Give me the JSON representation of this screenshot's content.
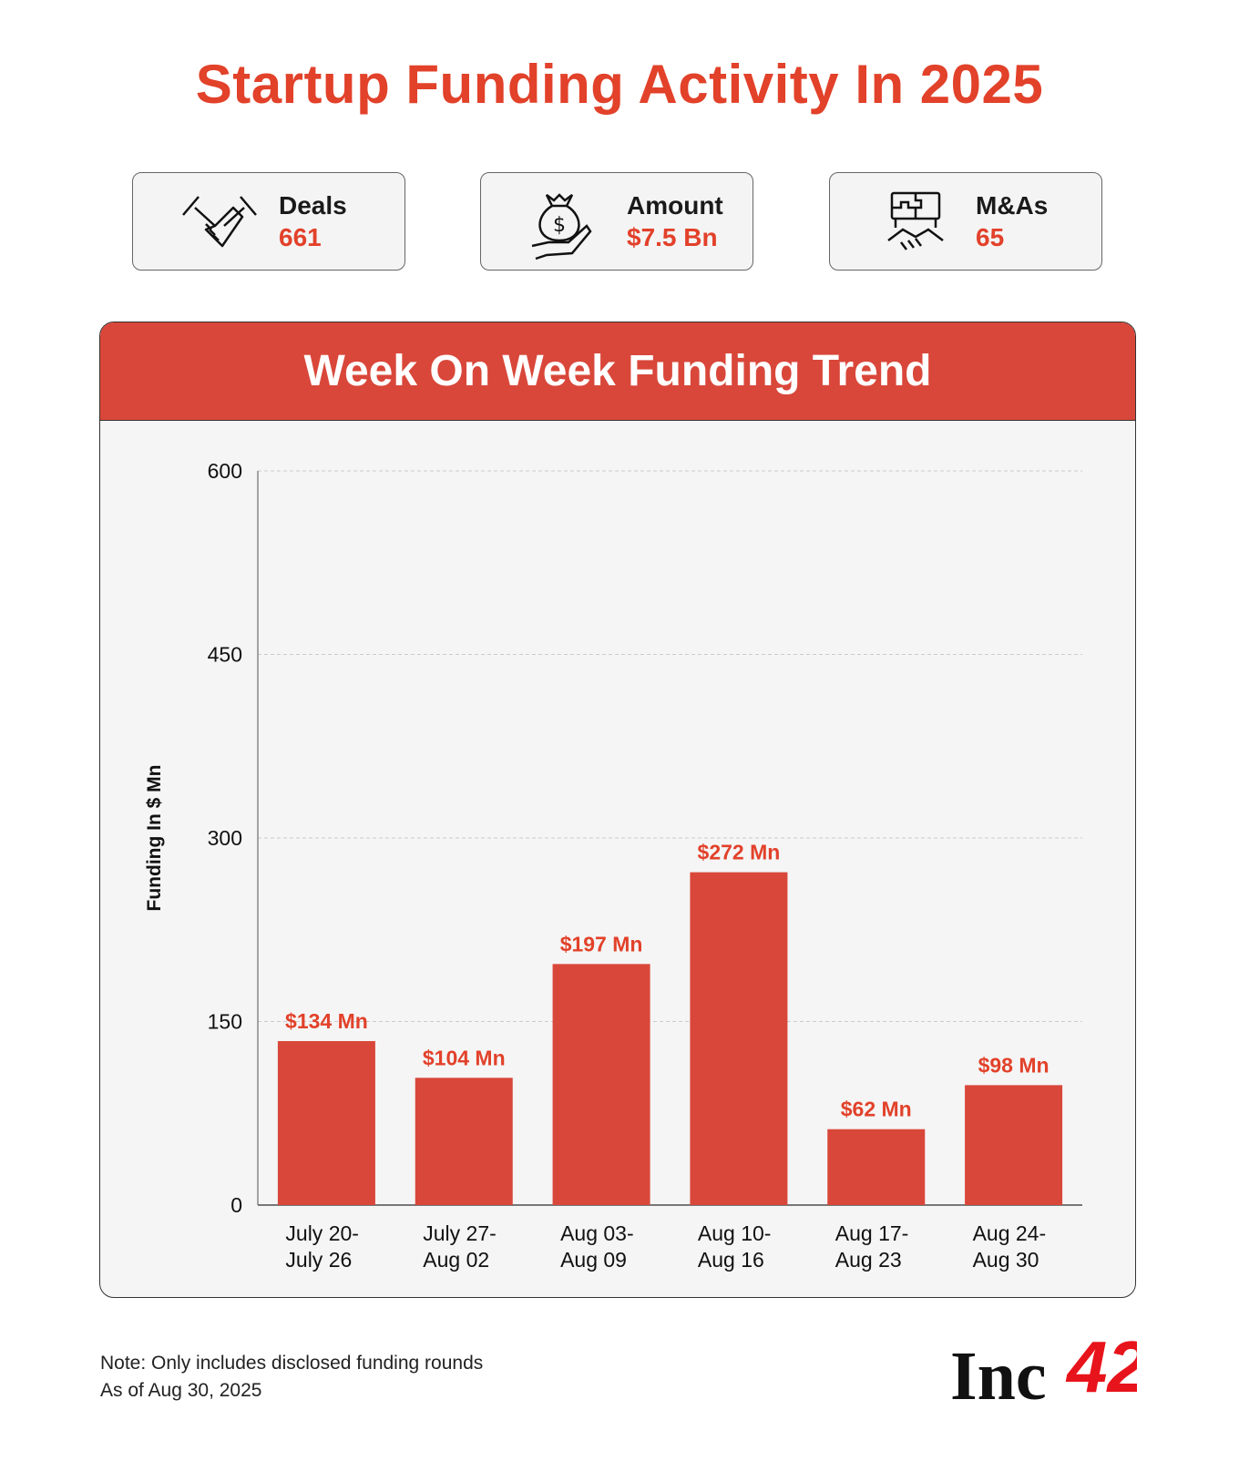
{
  "title": "Startup Funding Activity In 2025",
  "stats": [
    {
      "label": "Deals",
      "value": "661",
      "icon": "handshake-icon"
    },
    {
      "label": "Amount",
      "value": "$7.5 Bn",
      "icon": "money-bag-hand-icon"
    },
    {
      "label": "M&As",
      "value": "65",
      "icon": "puzzle-handshake-icon"
    }
  ],
  "colors": {
    "accent": "#e2412a",
    "bar": "#d9473a",
    "panel_bg": "#f5f5f5"
  },
  "chart_data": {
    "type": "bar",
    "title": "Week On Week Funding Trend",
    "ylabel": "Funding In $ Mn",
    "xlabel": "",
    "categories": [
      [
        "July 20-",
        "July 26"
      ],
      [
        "July 27-",
        "Aug 02"
      ],
      [
        "Aug 03-",
        "Aug 09"
      ],
      [
        "Aug 10-",
        "Aug 16"
      ],
      [
        "Aug 17-",
        "Aug 23"
      ],
      [
        "Aug 24-",
        "Aug 30"
      ]
    ],
    "values": [
      134,
      104,
      197,
      272,
      62,
      98
    ],
    "data_labels": [
      "$134 Mn",
      "$104 Mn",
      "$197 Mn",
      "$272 Mn",
      "$62 Mn",
      "$98 Mn"
    ],
    "ylim": [
      0,
      600
    ],
    "yticks": [
      "0",
      "150",
      "300",
      "450",
      "600"
    ],
    "grid": true
  },
  "footer": {
    "note": "Note: Only includes disclosed funding rounds",
    "as_of": "As of Aug 30, 2025",
    "logo": "Inc42"
  }
}
